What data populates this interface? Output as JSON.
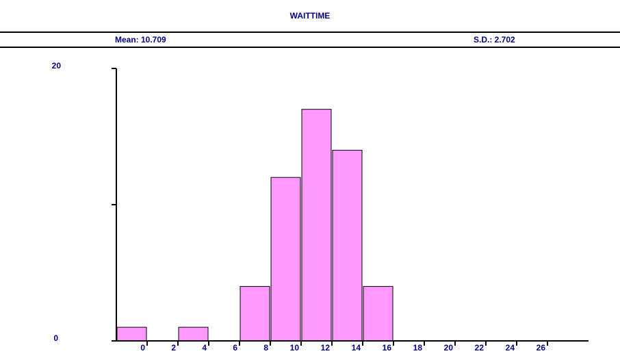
{
  "chart_data": {
    "type": "bar",
    "title": "WAITTIME",
    "stats": {
      "mean_label": "Mean: 10.709",
      "sd_label": "S.D.: 2.702"
    },
    "bins": [
      {
        "x0": -2,
        "x1": 0,
        "value": 1
      },
      {
        "x0": 0,
        "x1": 2,
        "value": 0
      },
      {
        "x0": 2,
        "x1": 4,
        "value": 1
      },
      {
        "x0": 4,
        "x1": 6,
        "value": 0
      },
      {
        "x0": 6,
        "x1": 8,
        "value": 4
      },
      {
        "x0": 8,
        "x1": 10,
        "value": 12
      },
      {
        "x0": 10,
        "x1": 12,
        "value": 17
      },
      {
        "x0": 12,
        "x1": 14,
        "value": 14
      },
      {
        "x0": 14,
        "x1": 16,
        "value": 4
      }
    ],
    "x_ticks": [
      "0",
      "2",
      "4",
      "6",
      "8",
      "10",
      "12",
      "14",
      "16",
      "18",
      "20",
      "22",
      "24",
      "26"
    ],
    "x_tick_values": [
      0,
      2,
      4,
      6,
      8,
      10,
      12,
      14,
      16,
      18,
      20,
      22,
      24,
      26
    ],
    "xlim": [
      -2,
      28
    ],
    "ylim": [
      0,
      20
    ],
    "y_tick_labels": [
      "0",
      "20"
    ],
    "y_ticks": [
      0,
      10,
      20
    ],
    "colors": {
      "bar_fill": "#ff99ff",
      "bar_edge": "#000000",
      "text": "#00007f"
    }
  }
}
